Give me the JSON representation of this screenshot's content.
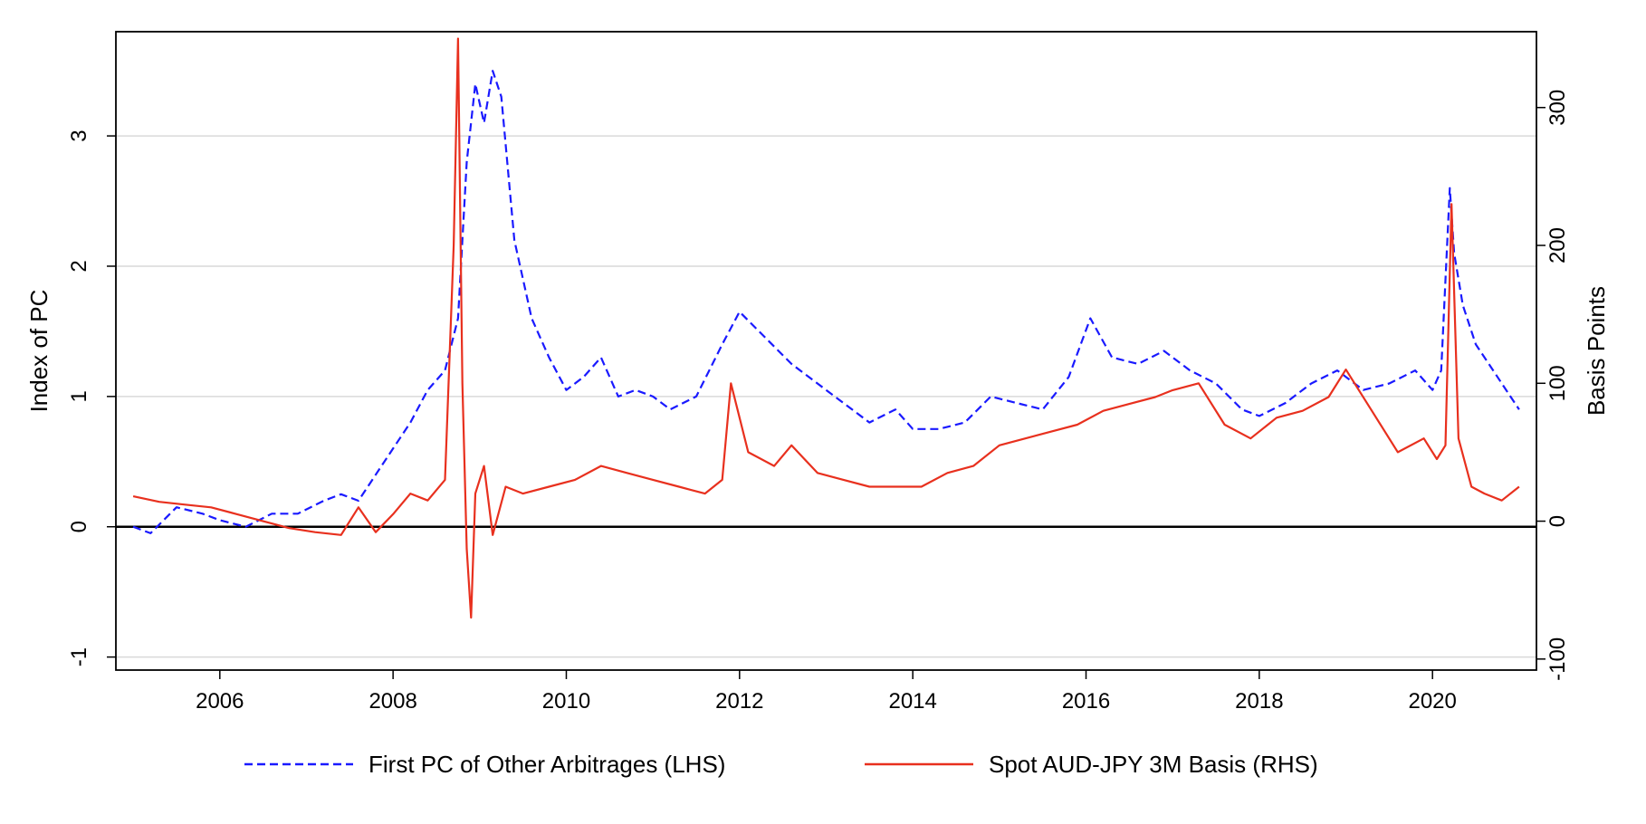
{
  "chart_data": {
    "type": "line",
    "xlabel": "",
    "x_ticks": [
      "2006",
      "2008",
      "2010",
      "2012",
      "2014",
      "2016",
      "2018",
      "2020"
    ],
    "xlim": [
      2004.8,
      2021.2
    ],
    "y_left": {
      "label": "Index of PC",
      "ylim": [
        -1.1,
        3.8
      ],
      "ticks": [
        "-1",
        "0",
        "1",
        "2",
        "3"
      ]
    },
    "y_right": {
      "label": "Basis Points",
      "ylim": [
        -108,
        355
      ],
      "ticks": [
        "-100",
        "0",
        "100",
        "200",
        "300"
      ]
    },
    "grid": "horizontal at left-axis ticks",
    "zero_line": true,
    "legend_position": "bottom",
    "colors": {
      "pc": "#1a1aff",
      "basis": "#e8301e"
    },
    "series": [
      {
        "name": "First PC of Other Arbitrages (LHS)",
        "axis": "left",
        "style": "dashed",
        "x": [
          2005.0,
          2005.2,
          2005.5,
          2005.8,
          2006.0,
          2006.3,
          2006.6,
          2006.9,
          2007.2,
          2007.4,
          2007.6,
          2007.8,
          2008.0,
          2008.2,
          2008.4,
          2008.6,
          2008.75,
          2008.85,
          2008.95,
          2009.05,
          2009.15,
          2009.25,
          2009.4,
          2009.6,
          2009.8,
          2010.0,
          2010.2,
          2010.4,
          2010.6,
          2010.8,
          2011.0,
          2011.2,
          2011.5,
          2011.8,
          2012.0,
          2012.3,
          2012.6,
          2012.9,
          2013.2,
          2013.5,
          2013.8,
          2014.0,
          2014.3,
          2014.6,
          2014.9,
          2015.2,
          2015.5,
          2015.8,
          2016.05,
          2016.3,
          2016.6,
          2016.9,
          2017.2,
          2017.5,
          2017.8,
          2018.0,
          2018.3,
          2018.6,
          2018.9,
          2019.2,
          2019.5,
          2019.8,
          2020.0,
          2020.1,
          2020.2,
          2020.25,
          2020.35,
          2020.5,
          2020.7,
          2020.9,
          2021.0
        ],
        "y": [
          0.0,
          -0.05,
          0.15,
          0.1,
          0.05,
          0.0,
          0.1,
          0.1,
          0.2,
          0.25,
          0.2,
          0.4,
          0.6,
          0.8,
          1.05,
          1.2,
          1.6,
          2.8,
          3.4,
          3.1,
          3.5,
          3.3,
          2.2,
          1.6,
          1.3,
          1.05,
          1.15,
          1.3,
          1.0,
          1.05,
          1.0,
          0.9,
          1.0,
          1.4,
          1.65,
          1.45,
          1.25,
          1.1,
          0.95,
          0.8,
          0.9,
          0.75,
          0.75,
          0.8,
          1.0,
          0.95,
          0.9,
          1.15,
          1.6,
          1.3,
          1.25,
          1.35,
          1.2,
          1.1,
          0.9,
          0.85,
          0.95,
          1.1,
          1.2,
          1.05,
          1.1,
          1.2,
          1.05,
          1.2,
          2.6,
          2.1,
          1.7,
          1.4,
          1.2,
          1.0,
          0.9
        ]
      },
      {
        "name": "Spot AUD-JPY 3M Basis (RHS)",
        "axis": "right",
        "style": "solid",
        "x": [
          2005.0,
          2005.3,
          2005.6,
          2005.9,
          2006.2,
          2006.5,
          2006.8,
          2007.1,
          2007.4,
          2007.6,
          2007.8,
          2008.0,
          2008.2,
          2008.4,
          2008.6,
          2008.7,
          2008.75,
          2008.8,
          2008.85,
          2008.9,
          2008.95,
          2009.05,
          2009.15,
          2009.3,
          2009.5,
          2009.8,
          2010.1,
          2010.4,
          2010.7,
          2011.0,
          2011.3,
          2011.6,
          2011.8,
          2011.9,
          2012.1,
          2012.4,
          2012.6,
          2012.9,
          2013.2,
          2013.5,
          2013.8,
          2014.1,
          2014.4,
          2014.7,
          2015.0,
          2015.3,
          2015.6,
          2015.9,
          2016.2,
          2016.5,
          2016.8,
          2017.0,
          2017.3,
          2017.6,
          2017.9,
          2018.2,
          2018.5,
          2018.8,
          2019.0,
          2019.3,
          2019.6,
          2019.9,
          2020.05,
          2020.15,
          2020.22,
          2020.3,
          2020.45,
          2020.6,
          2020.8,
          2021.0
        ],
        "y": [
          18,
          14,
          12,
          10,
          5,
          0,
          -5,
          -8,
          -10,
          10,
          -8,
          5,
          20,
          15,
          30,
          200,
          350,
          100,
          -20,
          -70,
          20,
          40,
          -10,
          25,
          20,
          25,
          30,
          40,
          35,
          30,
          25,
          20,
          30,
          100,
          50,
          40,
          55,
          35,
          30,
          25,
          25,
          25,
          35,
          40,
          55,
          60,
          65,
          70,
          80,
          85,
          90,
          95,
          100,
          70,
          60,
          75,
          80,
          90,
          110,
          80,
          50,
          60,
          45,
          55,
          230,
          60,
          25,
          20,
          15,
          25
        ]
      }
    ]
  }
}
